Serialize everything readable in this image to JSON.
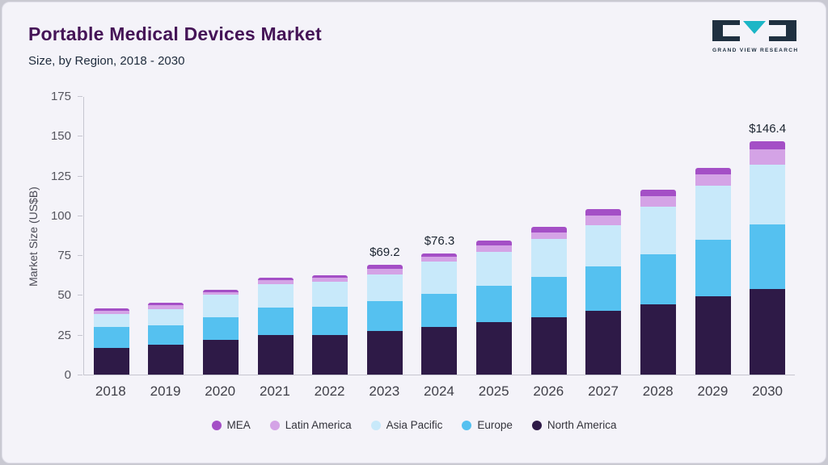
{
  "header": {
    "title": "Portable Medical Devices Market",
    "subtitle": "Size, by Region, 2018 - 2030",
    "logo_text": "GRAND VIEW RESEARCH"
  },
  "chart_data": {
    "type": "bar",
    "stacked": true,
    "title": "Portable Medical Devices Market Size, by Region, 2018 - 2030",
    "ylabel": "Market Size (US$B)",
    "ylim": [
      0,
      175
    ],
    "yticks": [
      0,
      25,
      50,
      75,
      100,
      125,
      150,
      175
    ],
    "grid": false,
    "legend_position": "bottom",
    "categories": [
      "2018",
      "2019",
      "2020",
      "2021",
      "2022",
      "2023",
      "2024",
      "2025",
      "2026",
      "2027",
      "2028",
      "2029",
      "2030"
    ],
    "series": [
      {
        "name": "North America",
        "color": "#2e1a47",
        "values": [
          17,
          19,
          22,
          25,
          25,
          27.5,
          30,
          33,
          36,
          40,
          44,
          49,
          54
        ]
      },
      {
        "name": "Europe",
        "color": "#55c1f0",
        "values": [
          13,
          12,
          14,
          17,
          17.5,
          18.5,
          21,
          23,
          25.5,
          28,
          31.5,
          35.5,
          40.5
        ]
      },
      {
        "name": "Asia Pacific",
        "color": "#c8e9fa",
        "values": [
          8,
          10,
          14,
          15,
          16,
          17,
          20,
          21,
          23.5,
          26,
          30,
          34,
          37.5
        ]
      },
      {
        "name": "Latin America",
        "color": "#d4a3e6",
        "values": [
          2,
          2.5,
          2,
          2.5,
          2.5,
          3.7,
          3,
          4,
          4.5,
          6,
          6.5,
          7.5,
          9.5
        ]
      },
      {
        "name": "MEA",
        "color": "#a44fc6",
        "values": [
          1.5,
          1.5,
          1.5,
          1.5,
          1.5,
          2.5,
          2.3,
          3,
          3.5,
          4,
          4,
          3.9,
          4.9
        ]
      }
    ],
    "totals": [
      41.5,
      45,
      53.5,
      61,
      62.5,
      69.2,
      76.3,
      84,
      93,
      104,
      116,
      129.9,
      146.4
    ],
    "annotations": [
      {
        "category": "2023",
        "label": "$69.2"
      },
      {
        "category": "2024",
        "label": "$76.3"
      },
      {
        "category": "2030",
        "label": "$146.4"
      }
    ],
    "legend": [
      "MEA",
      "Latin America",
      "Asia Pacific",
      "Europe",
      "North America"
    ]
  }
}
